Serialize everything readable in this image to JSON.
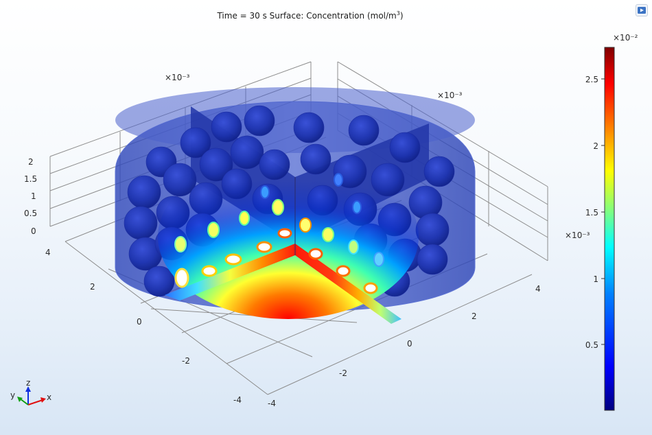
{
  "plot": {
    "title_main": "Time = 30 s Surface: Concentration (mol/m",
    "title_exp": "3",
    "title_close": ")"
  },
  "axes": {
    "mult_x": "×10⁻³",
    "mult_y": "×10⁻³",
    "mult_z": "×10⁻³",
    "z_ticks": [
      "0",
      "0.5",
      "1",
      "1.5",
      "2"
    ],
    "y_ticks": [
      "4",
      "2",
      "0",
      "-2",
      "-4"
    ],
    "x_ticks": [
      "-4",
      "-2",
      "0",
      "2",
      "4"
    ],
    "triad": {
      "z": "z",
      "y": "y",
      "x": "x"
    }
  },
  "colorbar": {
    "multiplier": "×10⁻²",
    "ticks": [
      "2.5",
      "2",
      "1.5",
      "1",
      "0.5"
    ],
    "min": 0.0,
    "max": 2.72,
    "colormap": [
      "#00007f",
      "#0000ff",
      "#0080ff",
      "#00ffff",
      "#80ff80",
      "#ffff00",
      "#ff8000",
      "#ff0000",
      "#7f0000"
    ]
  },
  "toolbar": {
    "snapshot_icon": "image-snapshot-icon"
  },
  "colors": {
    "cylinder": "#3a56c8",
    "hot": "#e8201a",
    "axis_grid": "#8c8c8c"
  }
}
